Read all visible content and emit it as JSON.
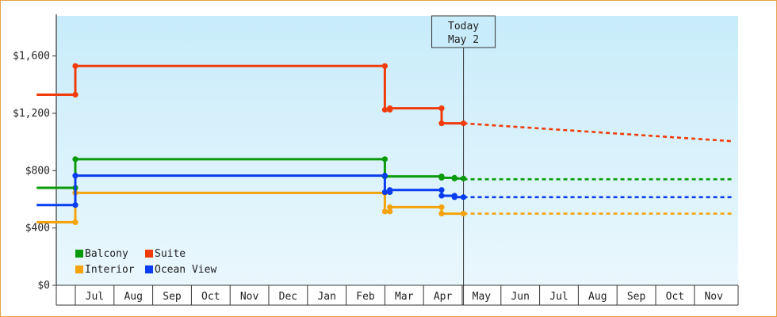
{
  "chart_data": {
    "type": "line",
    "step": true,
    "ylim": [
      0,
      1880
    ],
    "yticks": [
      {
        "value": 0,
        "label": "$0"
      },
      {
        "value": 400,
        "label": "$400"
      },
      {
        "value": 800,
        "label": "$800"
      },
      {
        "value": 1200,
        "label": "$1,200"
      },
      {
        "value": 1600,
        "label": "$1,600"
      }
    ],
    "months": [
      "Jul",
      "Aug",
      "Sep",
      "Oct",
      "Nov",
      "Dec",
      "Jan",
      "Feb",
      "Mar",
      "Apr",
      "May",
      "Jun",
      "Jul",
      "Aug",
      "Sep",
      "Oct",
      "Nov"
    ],
    "today": {
      "line1": "Today",
      "line2": "May 2",
      "date": "May 2"
    },
    "series": [
      {
        "name": "Balcony",
        "color": "#0a9a0a",
        "history": [
          [
            "Jun 1",
            680
          ],
          [
            "Jul 1",
            680
          ],
          [
            "Jul 1",
            880
          ],
          [
            "Mar 1",
            880
          ],
          [
            "Mar 1",
            760
          ],
          [
            "Apr 15",
            760
          ],
          [
            "Apr 15",
            750
          ],
          [
            "Apr 25",
            750
          ],
          [
            "Apr 25",
            745
          ],
          [
            "May 2",
            745
          ]
        ],
        "forecast": [
          [
            "May 2",
            740
          ],
          [
            "Dec 1",
            740
          ]
        ]
      },
      {
        "name": "Suite",
        "color": "#f03c0a",
        "history": [
          [
            "Jun 1",
            1330
          ],
          [
            "Jul 1",
            1330
          ],
          [
            "Jul 1",
            1530
          ],
          [
            "Mar 1",
            1530
          ],
          [
            "Mar 1",
            1225
          ],
          [
            "Mar 5",
            1225
          ],
          [
            "Mar 5",
            1235
          ],
          [
            "Apr 15",
            1235
          ],
          [
            "Apr 15",
            1130
          ],
          [
            "May 2",
            1130
          ]
        ],
        "forecast": [
          [
            "May 2",
            1130
          ],
          [
            "Dec 1",
            1005
          ]
        ]
      },
      {
        "name": "Interior",
        "color": "#f5a30a",
        "history": [
          [
            "Jun 1",
            440
          ],
          [
            "Jul 1",
            440
          ],
          [
            "Jul 1",
            645
          ],
          [
            "Mar 1",
            645
          ],
          [
            "Mar 1",
            515
          ],
          [
            "Mar 5",
            515
          ],
          [
            "Mar 5",
            545
          ],
          [
            "Apr 15",
            545
          ],
          [
            "Apr 15",
            500
          ],
          [
            "May 2",
            500
          ]
        ],
        "forecast": [
          [
            "May 2",
            500
          ],
          [
            "Dec 1",
            500
          ]
        ]
      },
      {
        "name": "Ocean View",
        "color": "#0a3cf0",
        "history": [
          [
            "Jun 1",
            560
          ],
          [
            "Jul 1",
            560
          ],
          [
            "Jul 1",
            765
          ],
          [
            "Mar 1",
            765
          ],
          [
            "Mar 1",
            650
          ],
          [
            "Mar 5",
            650
          ],
          [
            "Mar 5",
            665
          ],
          [
            "Apr 15",
            665
          ],
          [
            "Apr 15",
            625
          ],
          [
            "Apr 25",
            625
          ],
          [
            "Apr 25",
            615
          ],
          [
            "May 2",
            615
          ]
        ],
        "forecast": [
          [
            "May 2",
            615
          ],
          [
            "Dec 1",
            615
          ]
        ]
      }
    ],
    "legend": {
      "placement": "bottom-left",
      "order": [
        "Balcony",
        "Suite",
        "Interior",
        "Ocean View"
      ]
    },
    "background": {
      "top": "#c8ecfa",
      "bottom": "#eaf7fd"
    }
  }
}
